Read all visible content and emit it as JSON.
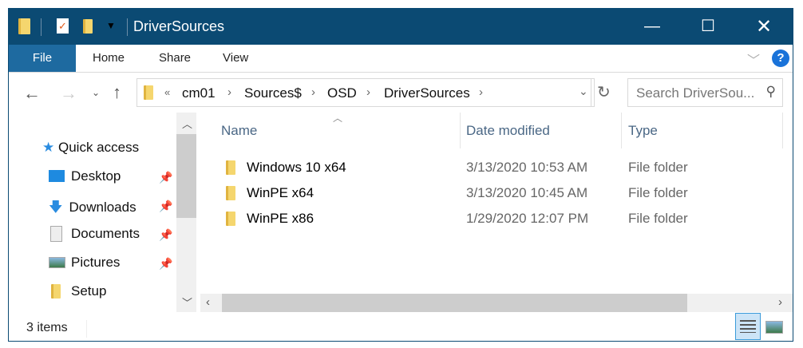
{
  "window": {
    "title": "DriverSources",
    "accent": "#0b4a73"
  },
  "ribbon": {
    "tabs": [
      "File",
      "Home",
      "Share",
      "View"
    ]
  },
  "address": {
    "overflow": "«",
    "crumbs": [
      "cm01",
      "Sources$",
      "OSD",
      "DriverSources"
    ]
  },
  "search": {
    "placeholder": "Search DriverSou..."
  },
  "nav": {
    "items": [
      {
        "label": "Quick access",
        "icon": "star-icon"
      },
      {
        "label": "Desktop",
        "icon": "desktop-icon",
        "pinned": true
      },
      {
        "label": "Downloads",
        "icon": "download-icon",
        "pinned": true
      },
      {
        "label": "Documents",
        "icon": "documents-icon",
        "pinned": true
      },
      {
        "label": "Pictures",
        "icon": "pictures-icon",
        "pinned": true
      },
      {
        "label": "Setup",
        "icon": "folder-icon"
      }
    ]
  },
  "columns": [
    "Name",
    "Date modified",
    "Type"
  ],
  "files": [
    {
      "name": "Windows 10 x64",
      "date": "3/13/2020 10:53 AM",
      "type": "File folder"
    },
    {
      "name": "WinPE x64",
      "date": "3/13/2020 10:45 AM",
      "type": "File folder"
    },
    {
      "name": "WinPE x86",
      "date": "1/29/2020 12:07 PM",
      "type": "File folder"
    }
  ],
  "status": {
    "count": "3 items"
  }
}
